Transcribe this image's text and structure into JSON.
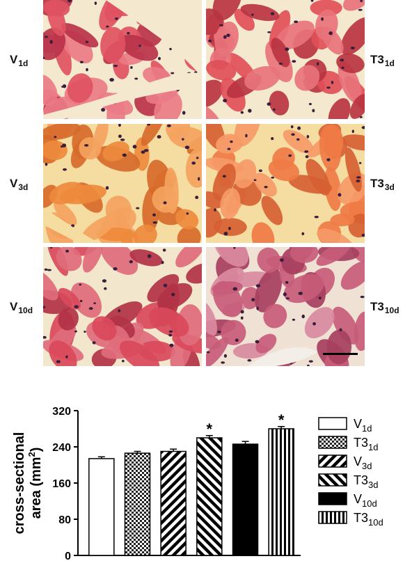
{
  "micrographs": [
    {
      "side": "left",
      "row": 0,
      "label": {
        "main": "V",
        "sub": "1d"
      }
    },
    {
      "side": "right",
      "row": 0,
      "label": {
        "main": "T3",
        "sub": "1d"
      }
    },
    {
      "side": "left",
      "row": 1,
      "label": {
        "main": "V",
        "sub": "3d"
      }
    },
    {
      "side": "right",
      "row": 1,
      "label": {
        "main": "T3",
        "sub": "3d"
      }
    },
    {
      "side": "left",
      "row": 2,
      "label": {
        "main": "V",
        "sub": "10d"
      }
    },
    {
      "side": "right",
      "row": 2,
      "label": {
        "main": "T3",
        "sub": "10d"
      }
    }
  ],
  "colors": {
    "tissue_pink": "#e0535f",
    "tissue_orange": "#ef8a3c",
    "tissue_purple": "#c95c78",
    "background_space": "#f3e6c4",
    "nucleus": "#3a1f3c",
    "bar_black": "#000000"
  },
  "chart_data": {
    "type": "bar",
    "title": "",
    "xlabel": "",
    "ylabel": "cross-sectional area (mm2)",
    "ylabel_parts": {
      "main": "cross-sectional",
      "line2": "area (mm",
      "sup": "2",
      "end": ")"
    },
    "ylim": [
      0,
      320
    ],
    "yticks": [
      0,
      80,
      160,
      240,
      320
    ],
    "categories": [
      "V1d",
      "T31d",
      "V3d",
      "T33d",
      "V10d",
      "T310d"
    ],
    "series": [
      {
        "values": [
          214,
          226,
          230,
          260,
          246,
          280
        ],
        "errors": [
          4,
          4,
          5,
          5,
          6,
          5
        ]
      }
    ],
    "fills": [
      "white",
      "checker",
      "diag-back",
      "diag-fwd",
      "black",
      "vertical"
    ],
    "significance": [
      "",
      "",
      "",
      "*",
      "",
      "*"
    ],
    "legend": {
      "placement": "right",
      "entries": [
        {
          "main": "V",
          "sub": "1d",
          "fill": "white"
        },
        {
          "main": "T3",
          "sub": "1d",
          "fill": "checker"
        },
        {
          "main": "V",
          "sub": "3d",
          "fill": "diag-back"
        },
        {
          "main": "T3",
          "sub": "3d",
          "fill": "diag-fwd"
        },
        {
          "main": "V",
          "sub": "10d",
          "fill": "black"
        },
        {
          "main": "T3",
          "sub": "10d",
          "fill": "vertical"
        }
      ]
    },
    "grid": false
  }
}
